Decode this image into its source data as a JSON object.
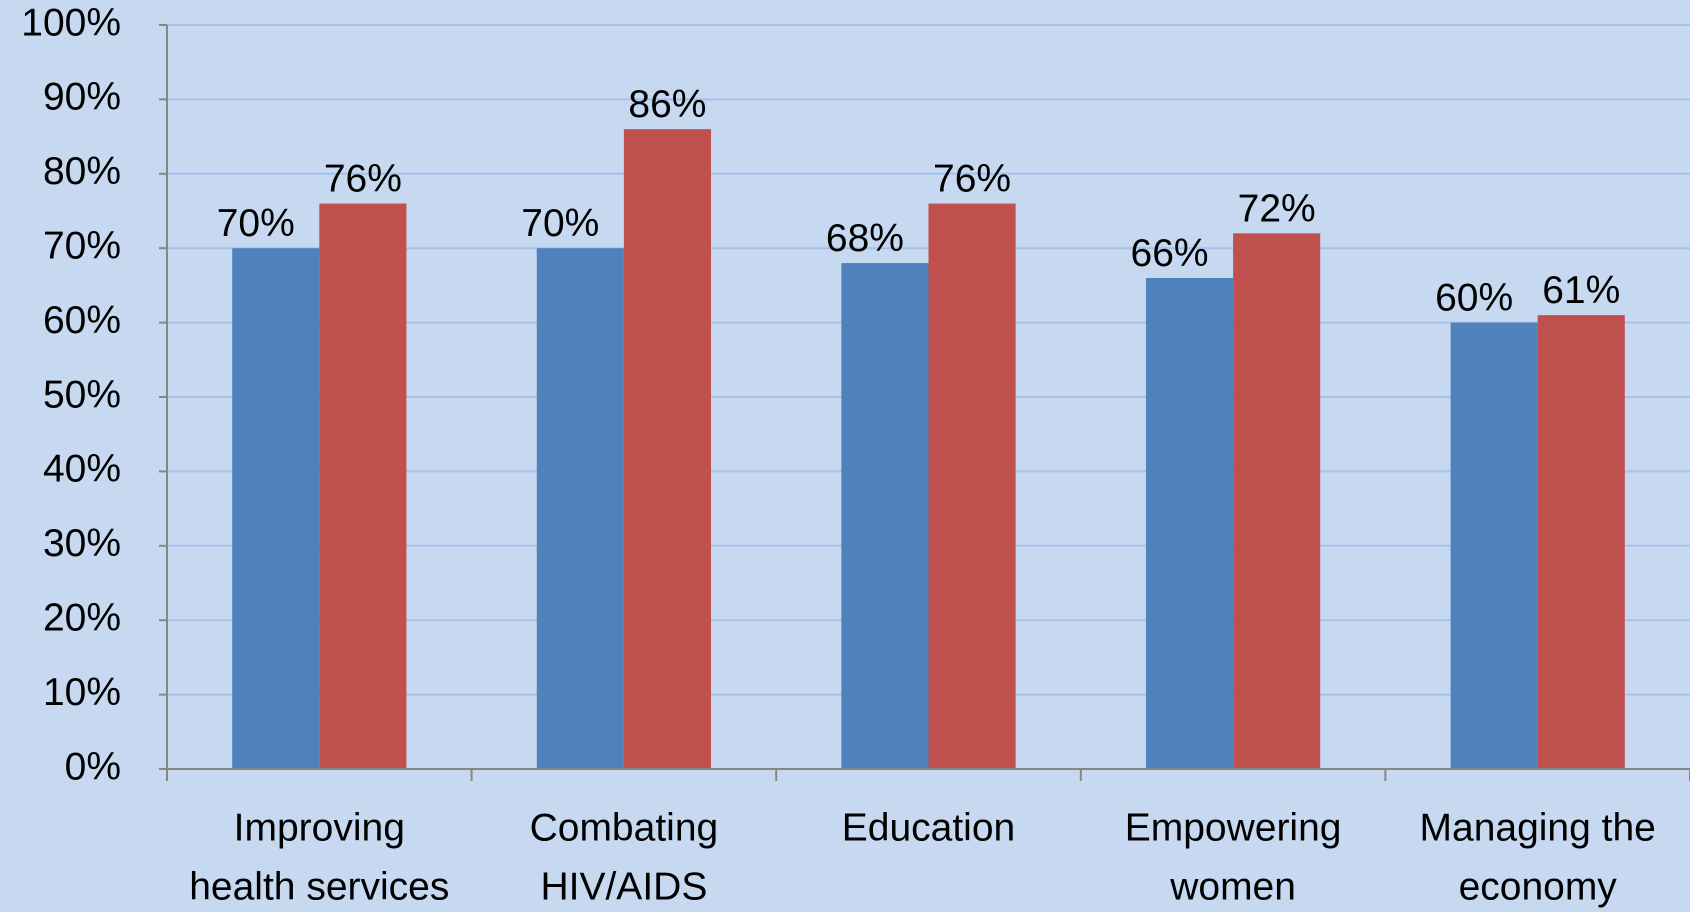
{
  "chart_data": {
    "type": "bar",
    "categories": [
      [
        "Improving",
        "health services"
      ],
      [
        "Combating",
        "HIV/AIDS"
      ],
      [
        "Education"
      ],
      [
        "Empowering",
        "women"
      ],
      [
        "Managing the",
        "economy"
      ]
    ],
    "series": [
      {
        "color": "#4f81bd",
        "values": [
          70,
          70,
          68,
          66,
          60
        ],
        "value_labels": [
          "70%",
          "70%",
          "68%",
          "66%",
          "60%"
        ]
      },
      {
        "color": "#c0504d",
        "values": [
          76,
          86,
          76,
          72,
          61
        ],
        "value_labels": [
          "76%",
          "86%",
          "76%",
          "72%",
          "61%"
        ]
      }
    ],
    "ylim": [
      0,
      100
    ],
    "yticks": [
      {
        "value": 0,
        "label": "0%"
      },
      {
        "value": 10,
        "label": "10%"
      },
      {
        "value": 20,
        "label": "20%"
      },
      {
        "value": 30,
        "label": "30%"
      },
      {
        "value": 40,
        "label": "40%"
      },
      {
        "value": 50,
        "label": "50%"
      },
      {
        "value": 60,
        "label": "60%"
      },
      {
        "value": 70,
        "label": "70%"
      },
      {
        "value": 80,
        "label": "80%"
      },
      {
        "value": 90,
        "label": "90%"
      },
      {
        "value": 100,
        "label": "100%"
      }
    ],
    "grid": true
  }
}
